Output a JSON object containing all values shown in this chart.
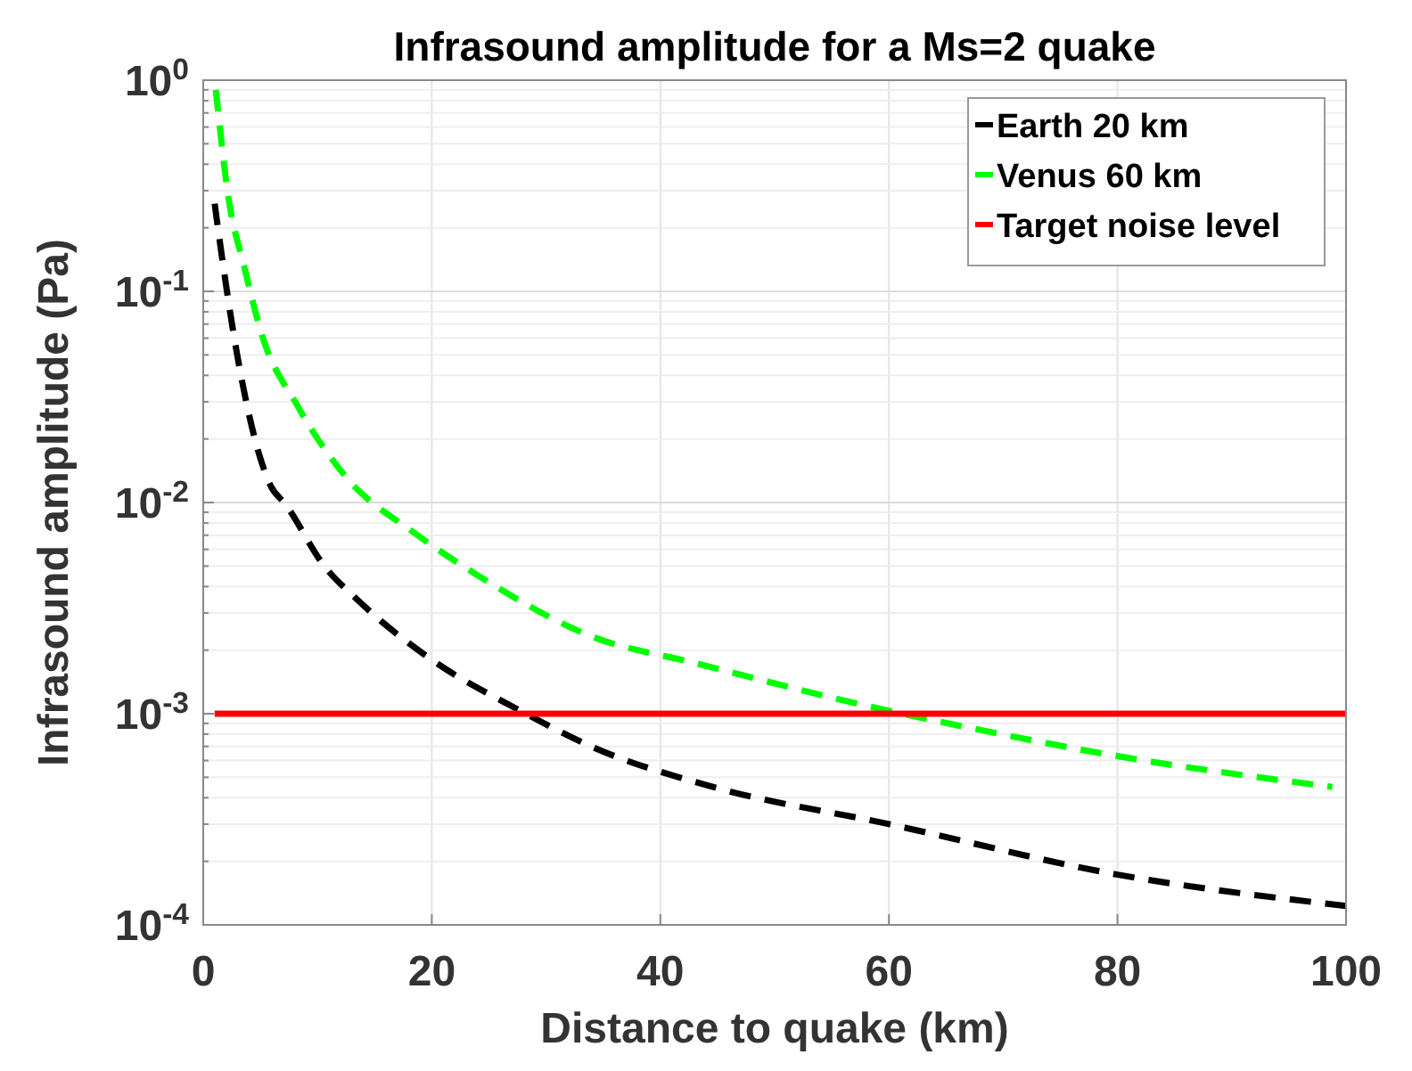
{
  "chart_data": {
    "type": "line",
    "title": "Infrasound amplitude for a Ms=2 quake",
    "xlabel": "Distance to quake (km)",
    "ylabel": "Infrasound amplitude (Pa)",
    "log": "y",
    "grid": true,
    "legend": "top right",
    "xlim": [
      0,
      100
    ],
    "xticks": [
      0,
      20,
      40,
      60,
      80,
      100
    ],
    "ylim": [
      0.0001,
      1
    ],
    "yticks": [
      {
        "value": 0.0001,
        "label": "10$^{-4}$"
      },
      {
        "value": 0.0002,
        "label": null
      },
      {
        "value": 0.0003,
        "label": null
      },
      {
        "value": 0.0004,
        "label": null
      },
      {
        "value": 0.0005,
        "label": null
      },
      {
        "value": 0.0006,
        "label": null
      },
      {
        "value": 0.0007,
        "label": null
      },
      {
        "value": 0.0008,
        "label": null
      },
      {
        "value": 0.0009,
        "label": null
      },
      {
        "value": 0.001,
        "label": "10$^{-3}$"
      },
      {
        "value": 0.002,
        "label": null
      },
      {
        "value": 0.003,
        "label": null
      },
      {
        "value": 0.004,
        "label": null
      },
      {
        "value": 0.005,
        "label": null
      },
      {
        "value": 0.006,
        "label": null
      },
      {
        "value": 0.007,
        "label": null
      },
      {
        "value": 0.008,
        "label": null
      },
      {
        "value": 0.009,
        "label": null
      },
      {
        "value": 0.01,
        "label": "10$^{-2}$"
      },
      {
        "value": 0.02,
        "label": null
      },
      {
        "value": 0.03,
        "label": null
      },
      {
        "value": 0.04,
        "label": null
      },
      {
        "value": 0.05,
        "label": null
      },
      {
        "value": 0.06,
        "label": null
      },
      {
        "value": 0.07,
        "label": null
      },
      {
        "value": 0.08,
        "label": null
      },
      {
        "value": 0.09,
        "label": null
      },
      {
        "value": 0.1,
        "label": "10$^{-1}$"
      },
      {
        "value": 0.2,
        "label": null
      },
      {
        "value": 0.3,
        "label": null
      },
      {
        "value": 0.4,
        "label": null
      },
      {
        "value": 0.5,
        "label": null
      },
      {
        "value": 0.6,
        "label": null
      },
      {
        "value": 0.7,
        "label": null
      },
      {
        "value": 0.8,
        "label": null
      },
      {
        "value": 0.9,
        "label": null
      },
      {
        "value": 1,
        "label": "10$^{0}$"
      }
    ],
    "series": [
      {
        "name": "Earth 20 km",
        "color": "#000000",
        "line_style": "dashed",
        "x": [
          1,
          1.4,
          3,
          5.9,
          7.2,
          10.6,
          13.4,
          20,
          27.5,
          34.2,
          44.6,
          60,
          80,
          100
        ],
        "values": [
          0.26,
          0.18,
          0.049,
          0.012,
          0.0098,
          0.005,
          0.0035,
          0.0018,
          0.00105,
          0.00069,
          0.00045,
          0.0003,
          0.000173,
          0.000123
        ]
      },
      {
        "name": "Venus 60 km",
        "color": "#00ff00",
        "line_style": "dashed",
        "x": [
          1.1,
          2.2,
          3.6,
          5.1,
          8.2,
          12.4,
          18.6,
          23.8,
          34.2,
          43,
          58.7,
          66.5,
          80,
          98.8
        ],
        "values": [
          0.9,
          0.28,
          0.13,
          0.063,
          0.029,
          0.0134,
          0.0071,
          0.0046,
          0.0023,
          0.00174,
          0.00107,
          0.00087,
          0.00063,
          0.00045
        ]
      },
      {
        "name": "Target noise level",
        "color": "#ff0000",
        "line_style": "solid",
        "x": [
          1,
          100
        ],
        "values": [
          0.001,
          0.001
        ]
      }
    ]
  }
}
